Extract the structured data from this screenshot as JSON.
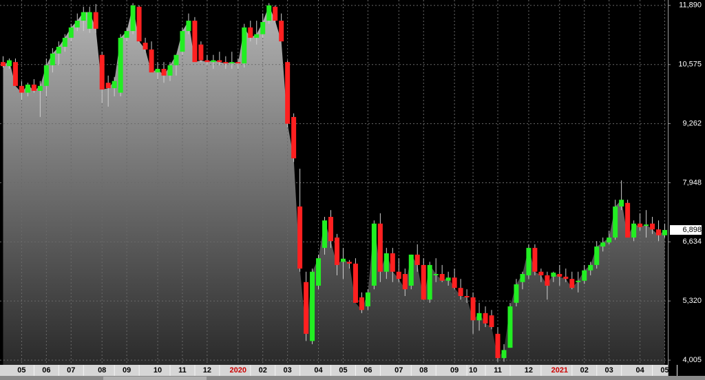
{
  "chart_data": {
    "type": "candlestick",
    "categories": [
      null,
      null,
      null,
      "05",
      null,
      null,
      null,
      "06",
      null,
      null,
      null,
      "07",
      null,
      null,
      null,
      null,
      "08",
      null,
      null,
      null,
      "09",
      null,
      null,
      null,
      null,
      "10",
      null,
      null,
      null,
      "11",
      null,
      null,
      null,
      "12",
      null,
      null,
      null,
      null,
      "2020",
      null,
      null,
      null,
      "02",
      null,
      null,
      null,
      "03",
      null,
      null,
      null,
      null,
      "04",
      null,
      null,
      null,
      "05",
      null,
      null,
      null,
      "06",
      null,
      null,
      null,
      null,
      "07",
      null,
      null,
      null,
      "08",
      null,
      null,
      null,
      null,
      "09",
      null,
      null,
      "10",
      null,
      null,
      null,
      "11",
      null,
      null,
      null,
      null,
      "12",
      null,
      null,
      null,
      null,
      "2021",
      null,
      null,
      null,
      "02",
      null,
      null,
      null,
      "03",
      null,
      null,
      null,
      null,
      "04",
      null,
      null,
      null,
      "05"
    ],
    "open": [
      10630,
      10540,
      10630,
      10100,
      9950,
      10130,
      9990,
      10100,
      10560,
      10820,
      10970,
      11170,
      11400,
      11550,
      11370,
      11740,
      10790,
      10170,
      10050,
      9950,
      11170,
      11320,
      11860,
      11060,
      10910,
      10400,
      10480,
      10330,
      10560,
      10860,
      11320,
      11550,
      11020,
      10670,
      10630,
      10670,
      10630,
      10600,
      10630,
      10600,
      11400,
      11170,
      11250,
      11550,
      11860,
      11550,
      10630,
      9410,
      7420,
      5740,
      4430,
      5660,
      6500,
      7190,
      6730,
      6190,
      6190,
      6150,
      5400,
      5200,
      5660,
      7040,
      5970,
      6380,
      5970,
      5920,
      5660,
      6350,
      6120,
      5350,
      5890,
      5920,
      5770,
      5840,
      5610,
      5430,
      5400,
      4890,
      5050,
      5000,
      4590,
      4050,
      4280,
      5280,
      5740,
      5890,
      6500,
      5970,
      5890,
      5860,
      5920,
      5860,
      5810,
      5740,
      5770,
      6000,
      6120,
      6530,
      6620,
      6730,
      7420,
      7500,
      6730,
      7040,
      6990,
      7040,
      6910,
      6780
    ],
    "high": [
      10760,
      10710,
      10710,
      10210,
      10170,
      10250,
      10210,
      10710,
      10940,
      11090,
      11250,
      11480,
      11710,
      11860,
      11860,
      11920,
      10860,
      10330,
      10300,
      11250,
      11400,
      11940,
      11890,
      11170,
      11090,
      10630,
      10630,
      10630,
      10790,
      11400,
      11710,
      11630,
      11090,
      10790,
      10790,
      10860,
      10760,
      10860,
      10710,
      11480,
      11550,
      11550,
      11710,
      11940,
      11890,
      11710,
      10670,
      9490,
      8260,
      5970,
      6040,
      6350,
      7190,
      7340,
      6810,
      6500,
      6230,
      6270,
      5510,
      5580,
      7110,
      7270,
      6500,
      6500,
      6270,
      6040,
      6350,
      6580,
      6270,
      6190,
      6270,
      6120,
      5970,
      6040,
      5810,
      5580,
      5510,
      5280,
      5200,
      5120,
      4740,
      4360,
      5280,
      5810,
      5970,
      6580,
      6580,
      6040,
      5970,
      5970,
      6120,
      6040,
      5970,
      5970,
      6120,
      6190,
      6650,
      6730,
      6880,
      7570,
      8000,
      7570,
      7110,
      7270,
      7340,
      7190,
      7110,
      7040
    ],
    "low": [
      10510,
      10480,
      10100,
      9790,
      9870,
      9950,
      9410,
      9870,
      10400,
      10560,
      10860,
      11090,
      11320,
      11320,
      11280,
      11280,
      9720,
      9640,
      9870,
      9870,
      11090,
      11250,
      11060,
      10860,
      10400,
      10250,
      10170,
      10210,
      10330,
      10790,
      11250,
      10630,
      10630,
      10560,
      10480,
      10560,
      10480,
      10480,
      10480,
      10510,
      11090,
      11020,
      11170,
      11480,
      11520,
      11090,
      9180,
      8410,
      5970,
      4430,
      4360,
      5580,
      6350,
      6500,
      5890,
      5810,
      6040,
      5280,
      5050,
      5120,
      5580,
      5740,
      5810,
      5740,
      5740,
      5430,
      5580,
      5970,
      5350,
      5280,
      5740,
      5740,
      5660,
      5580,
      5350,
      5280,
      4590,
      4660,
      4740,
      4690,
      3970,
      3970,
      4280,
      5200,
      5580,
      5810,
      5890,
      5740,
      5350,
      5740,
      5660,
      5740,
      5580,
      5510,
      5700,
      5890,
      6040,
      6420,
      6580,
      6680,
      7340,
      6730,
      6650,
      6880,
      6730,
      6810,
      6650,
      6730
    ],
    "close": [
      10540,
      10670,
      10100,
      9950,
      10130,
      9990,
      10100,
      10560,
      10820,
      10970,
      11170,
      11400,
      11550,
      11740,
      11740,
      11370,
      10020,
      10050,
      10210,
      11170,
      11320,
      11890,
      11090,
      10910,
      10400,
      10480,
      10330,
      10560,
      10790,
      11320,
      11550,
      10630,
      10670,
      10630,
      10670,
      10630,
      10600,
      10630,
      10600,
      11400,
      11170,
      11250,
      11520,
      11890,
      11550,
      11090,
      9260,
      8490,
      6040,
      4590,
      5970,
      6270,
      7110,
      6650,
      6120,
      6260,
      6150,
      5280,
      5120,
      5510,
      7040,
      5970,
      6380,
      5970,
      5810,
      5580,
      6350,
      6120,
      5350,
      6120,
      5920,
      5770,
      5840,
      5610,
      5430,
      5400,
      4890,
      5050,
      4820,
      4740,
      4050,
      4230,
      5200,
      5690,
      5920,
      6500,
      5970,
      5890,
      5660,
      5950,
      5860,
      5810,
      5610,
      5770,
      6000,
      6120,
      6530,
      6620,
      6730,
      7420,
      7570,
      6730,
      7040,
      6960,
      7020,
      6910,
      6780,
      6898
    ],
    "ylim": [
      3900,
      12010
    ],
    "yticks": [
      {
        "value": 4005,
        "label": "4,005"
      },
      {
        "value": 5320,
        "label": "5,320"
      },
      {
        "value": 6634,
        "label": "6,634"
      },
      {
        "value": 7948,
        "label": "7,948"
      },
      {
        "value": 9262,
        "label": "9,262"
      },
      {
        "value": 10575,
        "label": "10,575"
      },
      {
        "value": 11890,
        "label": "11,890"
      }
    ],
    "last_price": {
      "value": 6898,
      "label": "6,898"
    },
    "up_color": "#22ee22",
    "down_color": "#ff2020",
    "year_label_color": "#cc0000",
    "grid": true
  }
}
